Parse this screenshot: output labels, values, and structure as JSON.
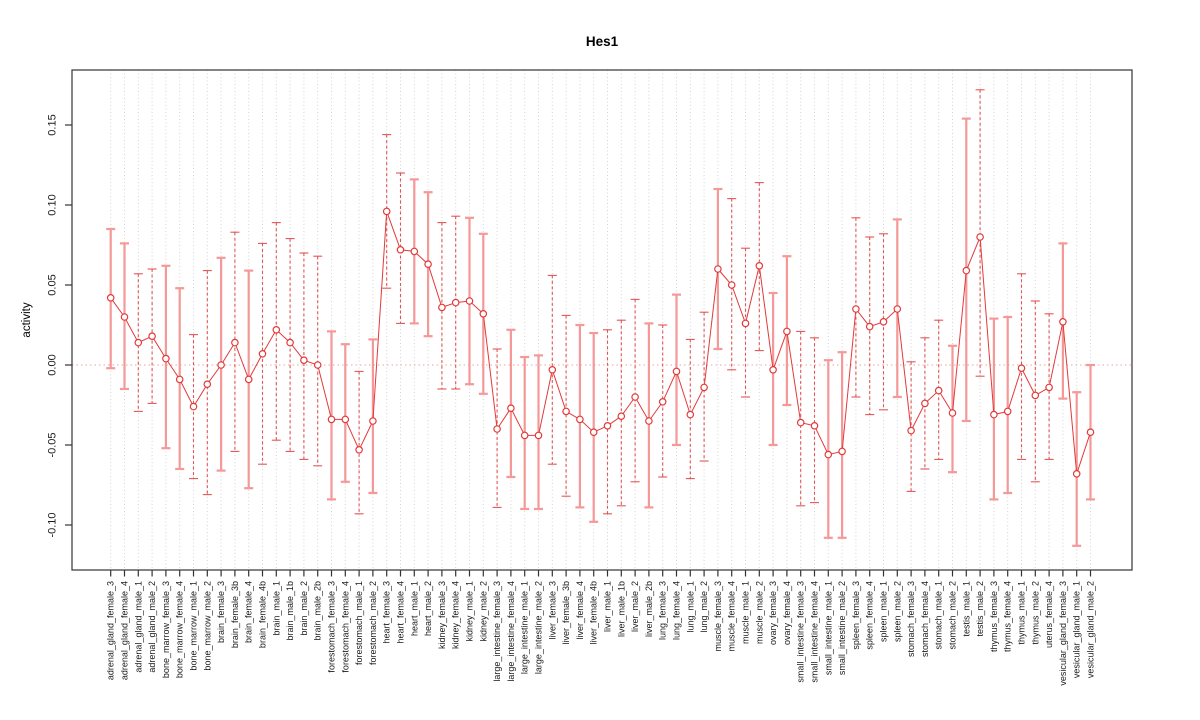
{
  "chart_data": {
    "type": "scatter",
    "title": "Hes1",
    "xlabel": "",
    "ylabel": "activity",
    "yticks": [
      -0.1,
      -0.05,
      0.0,
      0.05,
      0.1,
      0.15
    ],
    "ylim": [
      -0.128,
      0.185
    ],
    "grid": "vertical dotted gridline at every category; dotted horizontal reference line at y=0",
    "legend": "none",
    "marker": "open-circle",
    "line_between_points": true,
    "error_bars": true,
    "categories": [
      "adrenal_gland_female_3",
      "adrenal_gland_female_4",
      "adrenal_gland_male_1",
      "adrenal_gland_male_2",
      "bone_marrow_female_3",
      "bone_marrow_female_4",
      "bone_marrow_male_1",
      "bone_marrow_male_2",
      "brain_female_3",
      "brain_female_3b",
      "brain_female_4",
      "brain_female_4b",
      "brain_male_1",
      "brain_male_1b",
      "brain_male_2",
      "brain_male_2b",
      "forestomach_female_3",
      "forestomach_female_4",
      "forestomach_male_1",
      "forestomach_male_2",
      "heart_female_3",
      "heart_female_4",
      "heart_male_1",
      "heart_male_2",
      "kidney_female_3",
      "kidney_female_4",
      "kidney_male_1",
      "kidney_male_2",
      "large_intestine_female_3",
      "large_intestine_female_4",
      "large_intestine_male_1",
      "large_intestine_male_2",
      "liver_female_3",
      "liver_female_3b",
      "liver_female_4",
      "liver_female_4b",
      "liver_male_1",
      "liver_male_1b",
      "liver_male_2",
      "liver_male_2b",
      "lung_female_3",
      "lung_female_4",
      "lung_male_1",
      "lung_male_2",
      "muscle_female_3",
      "muscle_female_4",
      "muscle_male_1",
      "muscle_male_2",
      "ovary_female_3",
      "ovary_female_4",
      "small_intestine_female_3",
      "small_intestine_female_4",
      "small_intestine_male_1",
      "small_intestine_male_2",
      "spleen_female_3",
      "spleen_female_4",
      "spleen_male_1",
      "spleen_male_2",
      "stomach_female_3",
      "stomach_female_4",
      "stomach_male_1",
      "stomach_male_2",
      "testis_male_1",
      "testis_male_2",
      "thymus_female_3",
      "thymus_female_4",
      "thymus_male_1",
      "thymus_male_2",
      "uterus_female_4",
      "vesicular_gland_female_3",
      "vesicular_gland_male_1",
      "vesicular_gland_male_2"
    ],
    "values": [
      0.042,
      0.03,
      0.014,
      0.018,
      0.004,
      -0.009,
      -0.026,
      -0.012,
      0.0,
      0.014,
      -0.009,
      0.007,
      0.022,
      0.014,
      0.003,
      0.0,
      -0.034,
      -0.034,
      -0.053,
      -0.035,
      0.096,
      0.072,
      0.071,
      0.063,
      0.036,
      0.039,
      0.04,
      0.032,
      -0.04,
      -0.027,
      -0.044,
      -0.044,
      -0.003,
      -0.029,
      -0.034,
      -0.042,
      -0.038,
      -0.032,
      -0.02,
      -0.035,
      -0.023,
      -0.004,
      -0.031,
      -0.014,
      0.06,
      0.05,
      0.026,
      0.062,
      -0.003,
      0.021,
      -0.036,
      -0.038,
      -0.056,
      -0.054,
      0.035,
      0.024,
      0.027,
      0.035,
      -0.041,
      -0.024,
      -0.016,
      -0.03,
      0.059,
      0.08,
      -0.031,
      -0.029,
      -0.002,
      -0.019,
      -0.014,
      0.027,
      -0.068,
      -0.042
    ],
    "error_low": [
      -0.002,
      -0.015,
      -0.029,
      -0.024,
      -0.052,
      -0.065,
      -0.071,
      -0.081,
      -0.066,
      -0.054,
      -0.077,
      -0.062,
      -0.047,
      -0.054,
      -0.059,
      -0.063,
      -0.084,
      -0.073,
      -0.093,
      -0.08,
      0.048,
      0.026,
      0.026,
      0.018,
      -0.015,
      -0.015,
      -0.012,
      -0.018,
      -0.089,
      -0.07,
      -0.09,
      -0.09,
      -0.062,
      -0.082,
      -0.089,
      -0.098,
      -0.093,
      -0.088,
      -0.073,
      -0.089,
      -0.07,
      -0.05,
      -0.071,
      -0.06,
      0.01,
      -0.003,
      -0.02,
      0.009,
      -0.05,
      -0.025,
      -0.088,
      -0.086,
      -0.108,
      -0.108,
      -0.02,
      -0.031,
      -0.028,
      -0.02,
      -0.079,
      -0.065,
      -0.059,
      -0.067,
      -0.035,
      -0.007,
      -0.084,
      -0.08,
      -0.059,
      -0.073,
      -0.059,
      -0.021,
      -0.113,
      -0.084
    ],
    "error_high": [
      0.085,
      0.076,
      0.057,
      0.06,
      0.062,
      0.048,
      0.019,
      0.059,
      0.067,
      0.083,
      0.059,
      0.076,
      0.089,
      0.079,
      0.07,
      0.068,
      0.021,
      0.013,
      -0.004,
      0.016,
      0.144,
      0.12,
      0.116,
      0.108,
      0.089,
      0.093,
      0.092,
      0.082,
      0.01,
      0.022,
      0.005,
      0.006,
      0.056,
      0.031,
      0.025,
      0.02,
      0.022,
      0.028,
      0.041,
      0.026,
      0.025,
      0.044,
      0.016,
      0.033,
      0.11,
      0.104,
      0.073,
      0.114,
      0.045,
      0.068,
      0.021,
      0.017,
      0.003,
      0.008,
      0.092,
      0.08,
      0.082,
      0.091,
      0.002,
      0.017,
      0.028,
      0.012,
      0.154,
      0.172,
      0.029,
      0.03,
      0.057,
      0.04,
      0.032,
      0.076,
      -0.017,
      0.0
    ],
    "error_bar_styles": [
      "solid",
      "solid",
      "dashed",
      "dashed",
      "solid",
      "solid",
      "dashed",
      "dashed",
      "solid",
      "dashed",
      "solid",
      "dashed",
      "dashed",
      "dashed",
      "dashed",
      "dashed",
      "solid",
      "solid",
      "dashed",
      "solid",
      "dashed",
      "dashed",
      "solid",
      "solid",
      "dashed",
      "dashed",
      "solid",
      "solid",
      "dashed",
      "solid",
      "solid",
      "solid",
      "dashed",
      "dashed",
      "solid",
      "solid",
      "dashed",
      "dashed",
      "dashed",
      "solid",
      "dashed",
      "solid",
      "dashed",
      "dashed",
      "solid",
      "dashed",
      "dashed",
      "dashed",
      "solid",
      "solid",
      "dashed",
      "dashed",
      "solid",
      "solid",
      "dashed",
      "dashed",
      "dashed",
      "solid",
      "dashed",
      "dashed",
      "dashed",
      "solid",
      "solid",
      "dashed",
      "solid",
      "solid",
      "dashed",
      "dashed",
      "dashed",
      "solid",
      "solid",
      "solid"
    ],
    "colors": {
      "series": "#e33939",
      "error_bar_solid": "#f59898",
      "error_bar_dashed": "#e25555",
      "gridline": "#d4d4d4",
      "zero_line": "#f2b4b4",
      "axis": "#333333"
    }
  }
}
